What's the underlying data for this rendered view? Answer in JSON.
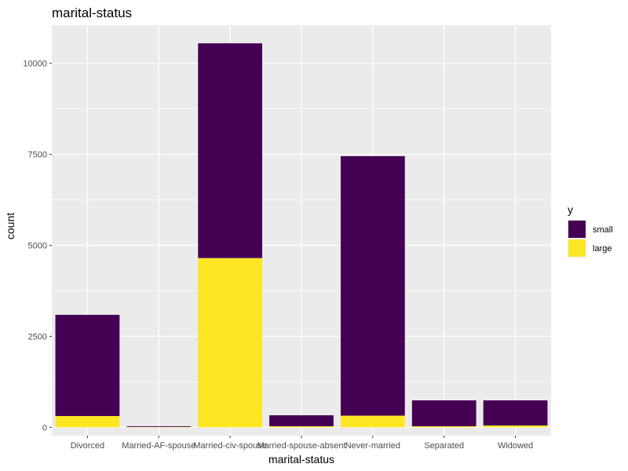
{
  "chart_data": {
    "type": "bar",
    "stacked": true,
    "title": "marital-status",
    "xlabel": "marital-status",
    "ylabel": "count",
    "categories": [
      "Divorced",
      "Married-AF-spouse",
      "Married-civ-spouse",
      "Married-spouse-absent",
      "Never-married",
      "Separated",
      "Widowed"
    ],
    "series": [
      {
        "name": "small",
        "color": "#440154",
        "values": [
          2780,
          20,
          5900,
          300,
          7130,
          710,
          690
        ]
      },
      {
        "name": "large",
        "color": "#FDE725",
        "values": [
          310,
          10,
          4650,
          30,
          320,
          30,
          50
        ]
      }
    ],
    "ylim": [
      -230,
      11050
    ],
    "yticks": [
      0,
      2500,
      5000,
      7500,
      10000
    ],
    "grid": true,
    "panel_background": "#EBEBEB",
    "legend": {
      "title": "y",
      "position": "right",
      "entries": [
        "small",
        "large"
      ]
    }
  }
}
